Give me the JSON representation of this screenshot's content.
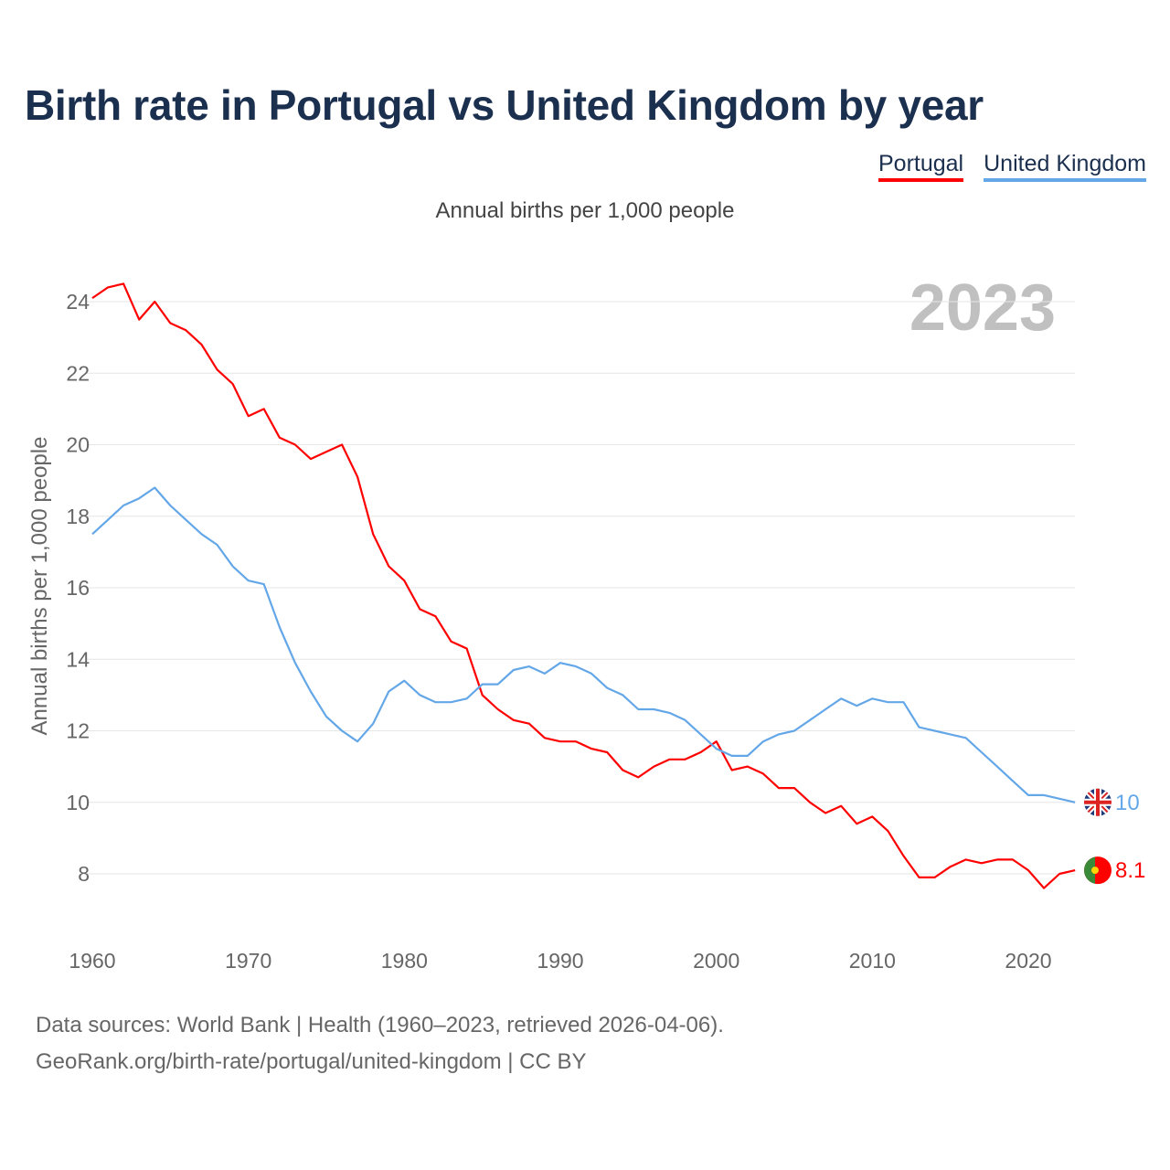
{
  "title": "Birth rate in Portugal vs United Kingdom by year",
  "subtitle": "Annual births per 1,000 people",
  "footer": {
    "line1": "Data sources: World Bank | Health (1960–2023, retrieved 2026-04-06).",
    "line2": "GeoRank.org/birth-rate/portugal/united-kingdom | CC BY"
  },
  "chart_data": {
    "type": "line",
    "title": "Birth rate in Portugal vs United Kingdom by year",
    "xlabel": "",
    "ylabel": "Annual births per 1,000 people",
    "year_watermark": "2023",
    "xlim": [
      1960,
      2023
    ],
    "ylim": [
      7,
      25
    ],
    "xticks": [
      1960,
      1970,
      1980,
      1990,
      2000,
      2010,
      2020
    ],
    "yticks": [
      8,
      10,
      12,
      14,
      16,
      18,
      20,
      22,
      24
    ],
    "grid": true,
    "legend": "top-right",
    "x_start": 1960,
    "series": [
      {
        "name": "Portugal",
        "color": "#ff0000",
        "end_label": "8.1",
        "flag": "portugal-flag",
        "values": [
          24.1,
          24.4,
          24.5,
          23.5,
          24.0,
          23.4,
          23.2,
          22.8,
          22.1,
          21.7,
          20.8,
          21.0,
          20.2,
          20.0,
          19.6,
          19.8,
          20.0,
          19.1,
          17.5,
          16.6,
          16.2,
          15.4,
          15.2,
          14.5,
          14.3,
          13.0,
          12.6,
          12.3,
          12.2,
          11.8,
          11.7,
          11.7,
          11.5,
          11.4,
          10.9,
          10.7,
          11.0,
          11.2,
          11.2,
          11.4,
          11.7,
          10.9,
          11.0,
          10.8,
          10.4,
          10.4,
          10.0,
          9.7,
          9.9,
          9.4,
          9.6,
          9.2,
          8.5,
          7.9,
          7.9,
          8.2,
          8.4,
          8.3,
          8.4,
          8.4,
          8.1,
          7.6,
          8.0,
          8.1
        ]
      },
      {
        "name": "United Kingdom",
        "color": "#64a7e8",
        "end_label": "10",
        "flag": "uk-flag",
        "values": [
          17.5,
          17.9,
          18.3,
          18.5,
          18.8,
          18.3,
          17.9,
          17.5,
          17.2,
          16.6,
          16.2,
          16.1,
          14.9,
          13.9,
          13.1,
          12.4,
          12.0,
          11.7,
          12.2,
          13.1,
          13.4,
          13.0,
          12.8,
          12.8,
          12.9,
          13.3,
          13.3,
          13.7,
          13.8,
          13.6,
          13.9,
          13.8,
          13.6,
          13.2,
          13.0,
          12.6,
          12.6,
          12.5,
          12.3,
          11.9,
          11.5,
          11.3,
          11.3,
          11.7,
          11.9,
          12.0,
          12.3,
          12.6,
          12.9,
          12.7,
          12.9,
          12.8,
          12.8,
          12.1,
          12.0,
          11.9,
          11.8,
          11.4,
          11.0,
          10.6,
          10.2,
          10.2,
          10.1,
          10.0
        ]
      }
    ]
  }
}
